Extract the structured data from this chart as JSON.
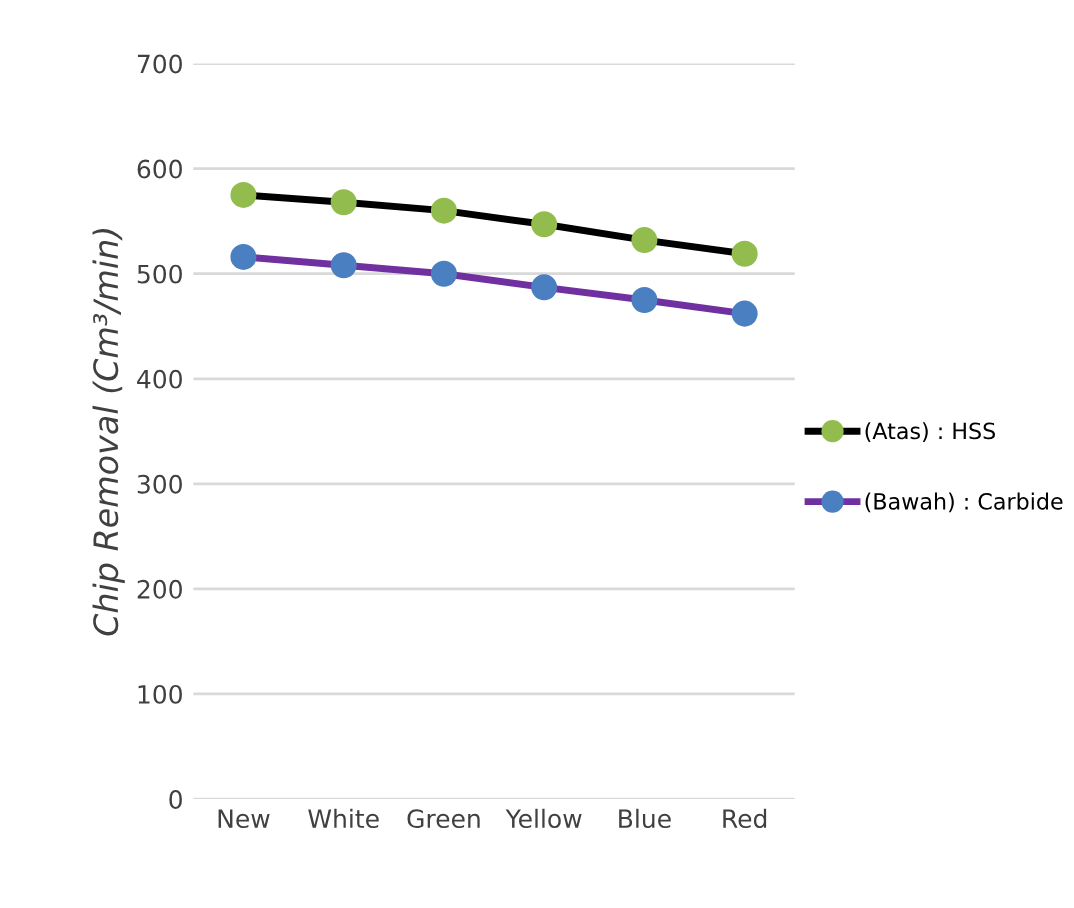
{
  "chart_data": {
    "type": "line",
    "ylabel": "Chip Removal (Cm³/min)",
    "categories": [
      "New",
      "White",
      "Green",
      "Yellow",
      "Blue",
      "Red"
    ],
    "series": [
      {
        "name": "(Atas) : HSS",
        "color": "#000000",
        "colors": [
          "#92bd4e",
          "#92bd4e",
          "#92bd4e",
          "#92bd4e",
          "#92bd4e",
          "#92bd4e"
        ],
        "values": [
          575,
          568,
          560,
          547,
          532,
          519
        ]
      },
      {
        "name": "(Bawah) : Carbide",
        "color": "#7030a0",
        "colors": [
          "#4a7fc1",
          "#4a7fc1",
          "#4a7fc1",
          "#4a7fc1",
          "#4a7fc1",
          "#4a7fc1"
        ],
        "values": [
          516,
          508,
          500,
          487,
          475,
          462
        ]
      }
    ],
    "ylim": [
      0,
      700
    ],
    "yticks": [
      0,
      100,
      200,
      300,
      400,
      500,
      600,
      700
    ],
    "grid": "y",
    "legend": "right",
    "marker": "circle"
  }
}
